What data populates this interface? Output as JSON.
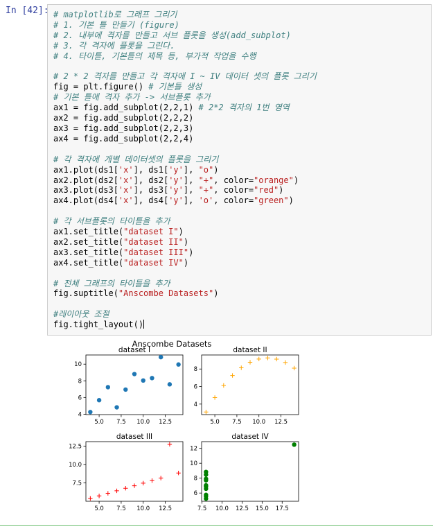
{
  "cell": {
    "prompt": "In [42]:",
    "code_lines": [
      {
        "parts": [
          {
            "t": "# matplotlib로 그래프 그리기",
            "c": "cm"
          }
        ]
      },
      {
        "parts": [
          {
            "t": "# 1. 기본 틀 만들기 (figure)",
            "c": "cm"
          }
        ]
      },
      {
        "parts": [
          {
            "t": "# 2. 내부에 격자를 만들고 서브 플롯을 생성(add_subplot)",
            "c": "cm"
          }
        ]
      },
      {
        "parts": [
          {
            "t": "# 3. 각 격자에 플롯을 그린다.",
            "c": "cm"
          }
        ]
      },
      {
        "parts": [
          {
            "t": "# 4. 타이틀, 기본틀의 제목 등, 부가적 작업을 수행",
            "c": "cm"
          }
        ]
      },
      {
        "parts": []
      },
      {
        "parts": [
          {
            "t": "# 2 * 2 격자를 만들고 각 격자에 I ~ IV 데이터 셋의 플롯 그리기",
            "c": "cm"
          }
        ]
      },
      {
        "parts": [
          {
            "t": "fig = plt.figure() ",
            "c": ""
          },
          {
            "t": "# 기본틀 생성",
            "c": "cm"
          }
        ]
      },
      {
        "parts": [
          {
            "t": "# 기본 틀에 격자 추가 -> 서브플롯 추가",
            "c": "cm"
          }
        ]
      },
      {
        "parts": [
          {
            "t": "ax1 = fig.add_subplot(2,2,1) ",
            "c": ""
          },
          {
            "t": "# 2*2 격자의 1번 영역",
            "c": "cm"
          }
        ]
      },
      {
        "parts": [
          {
            "t": "ax2 = fig.add_subplot(2,2,2)",
            "c": ""
          }
        ]
      },
      {
        "parts": [
          {
            "t": "ax3 = fig.add_subplot(2,2,3)",
            "c": ""
          }
        ]
      },
      {
        "parts": [
          {
            "t": "ax4 = fig.add_subplot(2,2,4)",
            "c": ""
          }
        ]
      },
      {
        "parts": []
      },
      {
        "parts": [
          {
            "t": "# 각 격자에 개별 데이터셋의 플롯을 그리기",
            "c": "cm"
          }
        ]
      },
      {
        "parts": [
          {
            "t": "ax1.plot(ds1[",
            "c": ""
          },
          {
            "t": "'x'",
            "c": "st"
          },
          {
            "t": "], ds1[",
            "c": ""
          },
          {
            "t": "'y'",
            "c": "st"
          },
          {
            "t": "], ",
            "c": ""
          },
          {
            "t": "\"o\"",
            "c": "st"
          },
          {
            "t": ")",
            "c": ""
          }
        ]
      },
      {
        "parts": [
          {
            "t": "ax2.plot(ds2[",
            "c": ""
          },
          {
            "t": "'x'",
            "c": "st"
          },
          {
            "t": "], ds2[",
            "c": ""
          },
          {
            "t": "'y'",
            "c": "st"
          },
          {
            "t": "], ",
            "c": ""
          },
          {
            "t": "\"+\"",
            "c": "st"
          },
          {
            "t": ", color=",
            "c": ""
          },
          {
            "t": "\"orange\"",
            "c": "st"
          },
          {
            "t": ")",
            "c": ""
          }
        ]
      },
      {
        "parts": [
          {
            "t": "ax3.plot(ds3[",
            "c": ""
          },
          {
            "t": "'x'",
            "c": "st"
          },
          {
            "t": "], ds3[",
            "c": ""
          },
          {
            "t": "'y'",
            "c": "st"
          },
          {
            "t": "], ",
            "c": ""
          },
          {
            "t": "\"+\"",
            "c": "st"
          },
          {
            "t": ", color=",
            "c": ""
          },
          {
            "t": "\"red\"",
            "c": "st"
          },
          {
            "t": ")",
            "c": ""
          }
        ]
      },
      {
        "parts": [
          {
            "t": "ax4.plot(ds4[",
            "c": ""
          },
          {
            "t": "'x'",
            "c": "st"
          },
          {
            "t": "], ds4[",
            "c": ""
          },
          {
            "t": "'y'",
            "c": "st"
          },
          {
            "t": "], ",
            "c": ""
          },
          {
            "t": "'o'",
            "c": "st"
          },
          {
            "t": ", color=",
            "c": ""
          },
          {
            "t": "\"green\"",
            "c": "st"
          },
          {
            "t": ")",
            "c": ""
          }
        ]
      },
      {
        "parts": []
      },
      {
        "parts": [
          {
            "t": "# 각 서브플롯의 타이틀을 추가",
            "c": "cm"
          }
        ]
      },
      {
        "parts": [
          {
            "t": "ax1.set_title(",
            "c": ""
          },
          {
            "t": "\"dataset I\"",
            "c": "st"
          },
          {
            "t": ")",
            "c": ""
          }
        ]
      },
      {
        "parts": [
          {
            "t": "ax2.set_title(",
            "c": ""
          },
          {
            "t": "\"dataset II\"",
            "c": "st"
          },
          {
            "t": ")",
            "c": ""
          }
        ]
      },
      {
        "parts": [
          {
            "t": "ax3.set_title(",
            "c": ""
          },
          {
            "t": "\"dataset III\"",
            "c": "st"
          },
          {
            "t": ")",
            "c": ""
          }
        ]
      },
      {
        "parts": [
          {
            "t": "ax4.set_title(",
            "c": ""
          },
          {
            "t": "\"dataset IV\"",
            "c": "st"
          },
          {
            "t": ")",
            "c": ""
          }
        ]
      },
      {
        "parts": []
      },
      {
        "parts": [
          {
            "t": "# 전체 그래프의 타이틀을 추가",
            "c": "cm"
          }
        ]
      },
      {
        "parts": [
          {
            "t": "fig.suptitle(",
            "c": ""
          },
          {
            "t": "\"Anscombe Datasets\"",
            "c": "st"
          },
          {
            "t": ")",
            "c": ""
          }
        ]
      },
      {
        "parts": []
      },
      {
        "parts": [
          {
            "t": "#레이아웃 조절",
            "c": "cm"
          }
        ]
      },
      {
        "parts": [
          {
            "t": "fig.tight_layout()",
            "c": ""
          }
        ]
      }
    ]
  },
  "colors": {
    "prompt": "#303f9f",
    "comment": "#408080",
    "string": "#ba2121",
    "cell_border": "#66bb6a",
    "ds1": "#1f77b4",
    "ds2": "orange",
    "ds3": "red",
    "ds4": "green"
  },
  "chart_data": {
    "suptitle": "Anscombe Datasets",
    "subplots": [
      {
        "title": "dataset I",
        "type": "scatter",
        "marker": "o",
        "color": "#1f77b4",
        "x": [
          10,
          8,
          13,
          9,
          11,
          14,
          6,
          4,
          12,
          7,
          5
        ],
        "y": [
          8.04,
          6.95,
          7.58,
          8.81,
          8.33,
          9.96,
          7.24,
          4.26,
          10.84,
          4.82,
          5.68
        ],
        "xlim": [
          3.5,
          14.5
        ],
        "ylim": [
          3.95,
          11.1
        ],
        "xticks": [
          5,
          7.5,
          10,
          12.5
        ],
        "xtick_labels": [
          "5.0",
          "7.5",
          "10.0",
          "12.5"
        ],
        "yticks": [
          4,
          6,
          8,
          10
        ],
        "ytick_labels": [
          "4",
          "6",
          "8",
          "10"
        ]
      },
      {
        "title": "dataset II",
        "type": "scatter",
        "marker": "+",
        "color": "orange",
        "x": [
          10,
          8,
          13,
          9,
          11,
          14,
          6,
          4,
          12,
          7,
          5
        ],
        "y": [
          9.14,
          8.14,
          8.74,
          8.77,
          9.26,
          8.1,
          6.13,
          3.1,
          9.13,
          7.26,
          4.74
        ],
        "xlim": [
          3.5,
          14.5
        ],
        "ylim": [
          2.8,
          9.6
        ],
        "xticks": [
          5,
          7.5,
          10,
          12.5
        ],
        "xtick_labels": [
          "5.0",
          "7.5",
          "10.0",
          "12.5"
        ],
        "yticks": [
          4,
          6,
          8
        ],
        "ytick_labels": [
          "4",
          "6",
          "8"
        ]
      },
      {
        "title": "dataset III",
        "type": "scatter",
        "marker": "+",
        "color": "red",
        "x": [
          10,
          8,
          13,
          9,
          11,
          14,
          6,
          4,
          12,
          7,
          5
        ],
        "y": [
          7.46,
          6.77,
          12.74,
          7.11,
          7.81,
          8.84,
          6.08,
          5.39,
          8.15,
          6.42,
          5.73
        ],
        "xlim": [
          3.5,
          14.5
        ],
        "ylim": [
          5.0,
          13.1
        ],
        "xticks": [
          5,
          7.5,
          10,
          12.5
        ],
        "xtick_labels": [
          "5.0",
          "7.5",
          "10.0",
          "12.5"
        ],
        "yticks": [
          7.5,
          10,
          12.5
        ],
        "ytick_labels": [
          "7.5",
          "10.0",
          "12.5"
        ]
      },
      {
        "title": "dataset IV",
        "type": "scatter",
        "marker": "o",
        "color": "green",
        "x": [
          8,
          8,
          8,
          8,
          8,
          8,
          8,
          19,
          8,
          8,
          8
        ],
        "y": [
          6.58,
          5.76,
          7.71,
          8.84,
          8.47,
          7.04,
          5.25,
          12.5,
          5.56,
          7.91,
          6.89
        ],
        "xlim": [
          7.45,
          19.55
        ],
        "ylim": [
          4.9,
          12.9
        ],
        "xticks": [
          7.5,
          10,
          12.5,
          15,
          17.5
        ],
        "xtick_labels": [
          "7.5",
          "10.0",
          "12.5",
          "15.0",
          "17.5"
        ],
        "yticks": [
          6,
          8,
          10,
          12
        ],
        "ytick_labels": [
          "6",
          "8",
          "10",
          "12"
        ]
      }
    ]
  }
}
